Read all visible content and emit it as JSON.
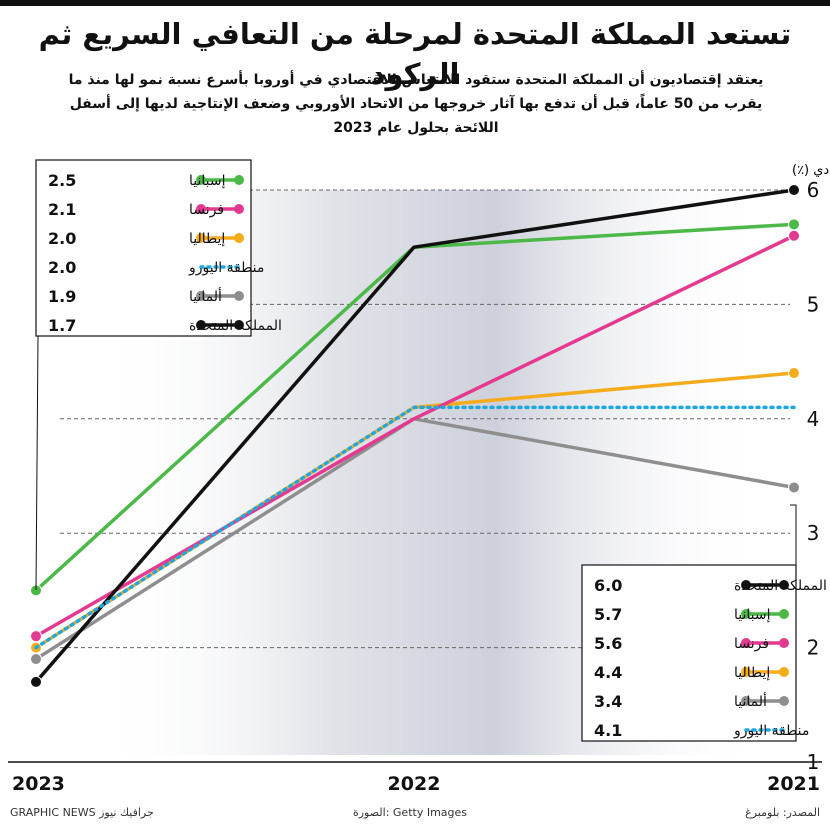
{
  "title": "تستعد المملكة المتحدة لمرحلة من التعافي السريع ثم الركود",
  "subtitle": "يعتقد إقتصاديون أن المملكة المتحدة ستقود الانتعاش الاقتصادي في أوروبا بأسرع نسبة نمو لها منذ ما يقرب من 50 عاماً، قبل أن تدفع بها آثار خروجها من الاتحاد الأوروبي وضعف الإنتاجية لديها إلى أسفل اللائحة بحلول عام 2023",
  "footer": {
    "source": "المصدر: بلومبرغ",
    "photo": "الصورة: Getty Images",
    "brand": "GRAPHIC NEWS جرافيك نيوز"
  },
  "colors": {
    "spain": "#4cb848",
    "france": "#e33a8f",
    "italy": "#f4ac1d",
    "eurozone": "#1fa8e0",
    "germany": "#8e8e8e",
    "uk": "#111111"
  },
  "chart_data": {
    "type": "line",
    "ylabel": "النمو الاقتصادي (٪)",
    "x": [
      "2021",
      "2022",
      "2023"
    ],
    "ylim": [
      1,
      6
    ],
    "yticks": [
      "1",
      "2",
      "3",
      "4",
      "5",
      "6"
    ],
    "grid": "dashed horizontal",
    "series": [
      {
        "key": "spain",
        "name": "إسبانيا",
        "values": [
          5.7,
          5.5,
          2.5
        ],
        "legend_2021": "5.7",
        "legend_2023": "2.5"
      },
      {
        "key": "france",
        "name": "فرنسا",
        "values": [
          5.6,
          4.0,
          2.1
        ],
        "legend_2021": "5.6",
        "legend_2023": "2.1"
      },
      {
        "key": "italy",
        "name": "إيطاليا",
        "values": [
          4.4,
          4.1,
          2.0
        ],
        "legend_2021": "4.4",
        "legend_2023": "2.0"
      },
      {
        "key": "eurozone",
        "name": "منطقة اليورو",
        "values": [
          4.1,
          4.1,
          2.0
        ],
        "legend_2021": "4.1",
        "legend_2023": "2.0"
      },
      {
        "key": "germany",
        "name": "ألمانيا",
        "values": [
          3.4,
          4.0,
          1.9
        ],
        "legend_2021": "3.4",
        "legend_2023": "1.9"
      },
      {
        "key": "uk",
        "name": "المملكة المتحدة",
        "values": [
          6.0,
          5.5,
          1.7
        ],
        "legend_2021": "6.0",
        "legend_2023": "1.7"
      }
    ],
    "legend_2023_order": [
      "spain",
      "france",
      "italy",
      "eurozone",
      "germany",
      "uk"
    ],
    "legend_2021_order": [
      "uk",
      "spain",
      "france",
      "italy",
      "germany",
      "eurozone"
    ]
  }
}
